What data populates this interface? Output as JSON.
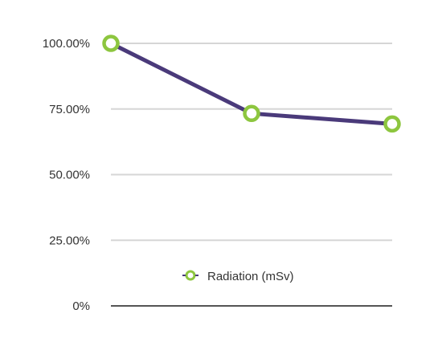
{
  "chart_data": {
    "type": "line",
    "x": [
      1,
      2,
      3
    ],
    "ylim": [
      0,
      100
    ],
    "yticks": [
      {
        "value": 0,
        "label": "0%"
      },
      {
        "value": 25,
        "label": "25.00%"
      },
      {
        "value": 50,
        "label": "50.00%"
      },
      {
        "value": 75,
        "label": "75.00%"
      },
      {
        "value": 100,
        "label": "100.00%"
      }
    ],
    "series": [
      {
        "name": "Radiation (mSv)",
        "values": [
          100,
          73.3,
          69.3
        ]
      }
    ],
    "grid": true,
    "legend": "bottom-center",
    "colors": {
      "line": "#4a3a7a",
      "marker": "#8dc63f",
      "grid": "#d6d6d6",
      "axis": "#555555"
    }
  }
}
